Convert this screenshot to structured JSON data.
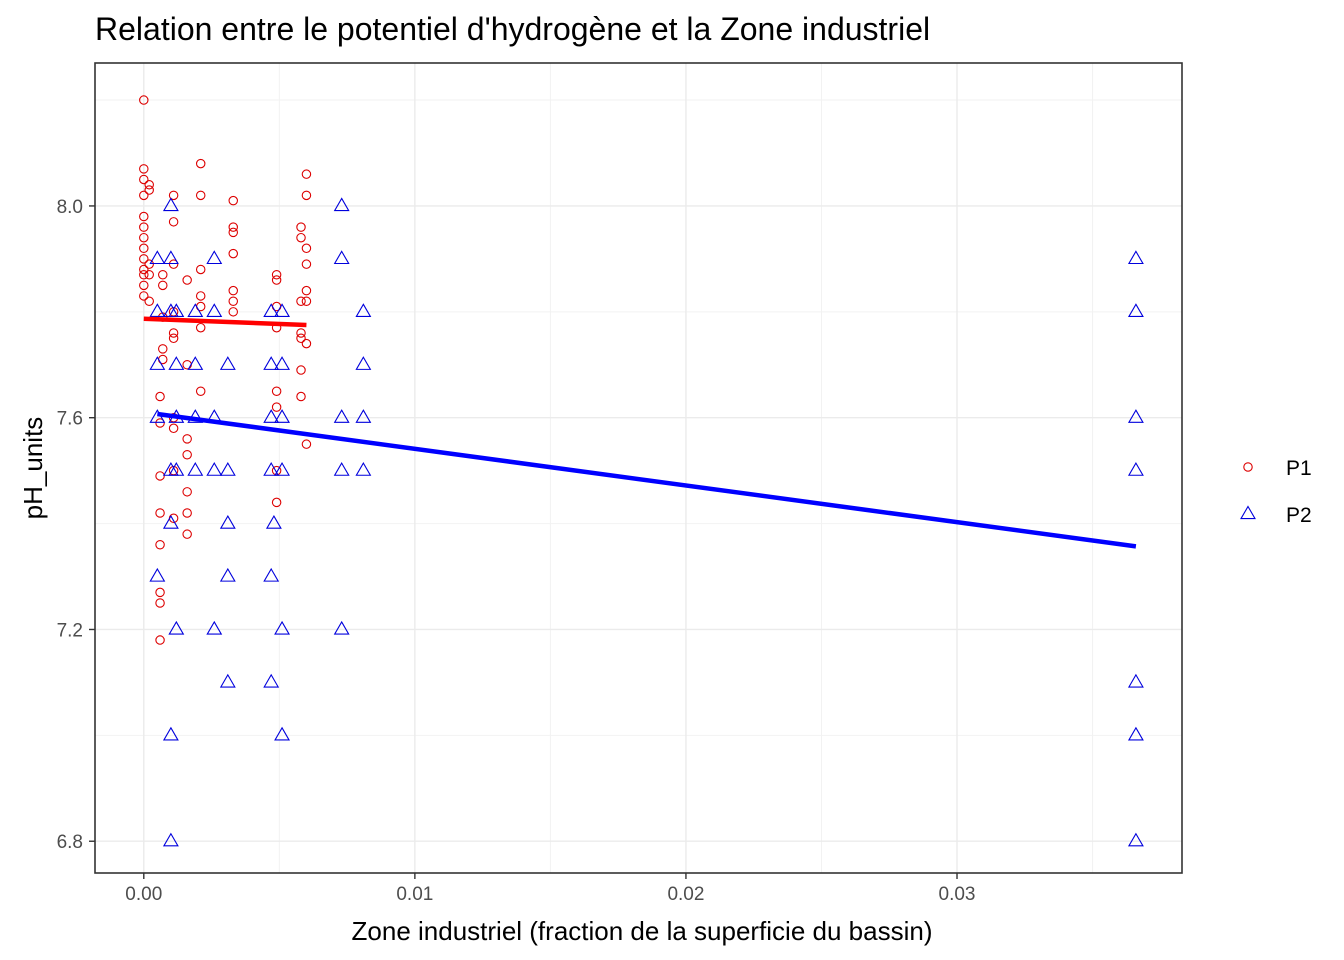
{
  "chart_data": {
    "type": "scatter",
    "title": "Relation entre le potentiel d'hydrogène et la Zone industriel",
    "xlabel": "Zone industriel (fraction de la superficie du bassin)",
    "ylabel": "pH_units",
    "xlim": [
      -0.0018,
      0.0383
    ],
    "ylim": [
      6.74,
      8.27
    ],
    "x_ticks": [
      0.0,
      0.01,
      0.02,
      0.03
    ],
    "x_tick_labels": [
      "0.00",
      "0.01",
      "0.02",
      "0.03"
    ],
    "y_ticks": [
      6.8,
      7.2,
      7.6,
      8.0
    ],
    "y_tick_labels": [
      "6.8",
      "7.2",
      "7.6",
      "8.0"
    ],
    "grid": true,
    "legend_position": "right",
    "series": [
      {
        "name": "P1",
        "marker": "circle",
        "color": "#dd0000",
        "points": [
          [
            0.0,
            8.2
          ],
          [
            0.0,
            8.07
          ],
          [
            0.0,
            8.05
          ],
          [
            0.0,
            8.02
          ],
          [
            0.0,
            7.98
          ],
          [
            0.0,
            7.96
          ],
          [
            0.0,
            7.94
          ],
          [
            0.0,
            7.92
          ],
          [
            0.0,
            7.9
          ],
          [
            0.0,
            7.88
          ],
          [
            0.0,
            7.87
          ],
          [
            0.0,
            7.85
          ],
          [
            0.0,
            7.83
          ],
          [
            0.0002,
            8.04
          ],
          [
            0.0002,
            8.03
          ],
          [
            0.0002,
            7.89
          ],
          [
            0.0002,
            7.87
          ],
          [
            0.0002,
            7.82
          ],
          [
            0.0006,
            7.64
          ],
          [
            0.0006,
            7.59
          ],
          [
            0.0006,
            7.49
          ],
          [
            0.0006,
            7.42
          ],
          [
            0.0006,
            7.36
          ],
          [
            0.0006,
            7.27
          ],
          [
            0.0006,
            7.25
          ],
          [
            0.0006,
            7.18
          ],
          [
            0.0007,
            7.87
          ],
          [
            0.0007,
            7.85
          ],
          [
            0.0007,
            7.79
          ],
          [
            0.0007,
            7.73
          ],
          [
            0.0007,
            7.71
          ],
          [
            0.0011,
            8.02
          ],
          [
            0.0011,
            7.97
          ],
          [
            0.0011,
            7.89
          ],
          [
            0.0011,
            7.8
          ],
          [
            0.0011,
            7.76
          ],
          [
            0.0011,
            7.75
          ],
          [
            0.0011,
            7.6
          ],
          [
            0.0011,
            7.58
          ],
          [
            0.0011,
            7.5
          ],
          [
            0.0011,
            7.41
          ],
          [
            0.0016,
            7.86
          ],
          [
            0.0016,
            7.7
          ],
          [
            0.0016,
            7.56
          ],
          [
            0.0016,
            7.53
          ],
          [
            0.0016,
            7.46
          ],
          [
            0.0016,
            7.42
          ],
          [
            0.0016,
            7.38
          ],
          [
            0.0021,
            8.08
          ],
          [
            0.0021,
            8.02
          ],
          [
            0.0021,
            7.88
          ],
          [
            0.0021,
            7.83
          ],
          [
            0.0021,
            7.81
          ],
          [
            0.0021,
            7.77
          ],
          [
            0.0021,
            7.65
          ],
          [
            0.0033,
            8.01
          ],
          [
            0.0033,
            7.96
          ],
          [
            0.0033,
            7.95
          ],
          [
            0.0033,
            7.91
          ],
          [
            0.0033,
            7.84
          ],
          [
            0.0033,
            7.82
          ],
          [
            0.0033,
            7.8
          ],
          [
            0.0049,
            7.87
          ],
          [
            0.0049,
            7.86
          ],
          [
            0.0049,
            7.81
          ],
          [
            0.0049,
            7.77
          ],
          [
            0.0049,
            7.65
          ],
          [
            0.0049,
            7.62
          ],
          [
            0.0049,
            7.5
          ],
          [
            0.0049,
            7.44
          ],
          [
            0.0058,
            7.96
          ],
          [
            0.0058,
            7.94
          ],
          [
            0.0058,
            7.82
          ],
          [
            0.0058,
            7.76
          ],
          [
            0.0058,
            7.75
          ],
          [
            0.0058,
            7.69
          ],
          [
            0.0058,
            7.64
          ],
          [
            0.006,
            8.06
          ],
          [
            0.006,
            8.02
          ],
          [
            0.006,
            7.92
          ],
          [
            0.006,
            7.89
          ],
          [
            0.006,
            7.84
          ],
          [
            0.006,
            7.82
          ],
          [
            0.006,
            7.74
          ],
          [
            0.006,
            7.55
          ]
        ],
        "trend": [
          [
            0.0,
            7.787
          ],
          [
            0.006,
            7.775
          ]
        ]
      },
      {
        "name": "P2",
        "marker": "triangle",
        "color": "#0000dd",
        "points": [
          [
            0.0005,
            7.9
          ],
          [
            0.0005,
            7.8
          ],
          [
            0.0005,
            7.7
          ],
          [
            0.0005,
            7.6
          ],
          [
            0.0005,
            7.3
          ],
          [
            0.001,
            8.0
          ],
          [
            0.001,
            7.9
          ],
          [
            0.001,
            7.8
          ],
          [
            0.001,
            7.5
          ],
          [
            0.001,
            7.4
          ],
          [
            0.001,
            7.0
          ],
          [
            0.001,
            6.8
          ],
          [
            0.0012,
            7.8
          ],
          [
            0.0012,
            7.7
          ],
          [
            0.0012,
            7.6
          ],
          [
            0.0012,
            7.5
          ],
          [
            0.0012,
            7.2
          ],
          [
            0.0019,
            7.8
          ],
          [
            0.0019,
            7.7
          ],
          [
            0.0019,
            7.6
          ],
          [
            0.0019,
            7.5
          ],
          [
            0.0026,
            7.9
          ],
          [
            0.0026,
            7.8
          ],
          [
            0.0026,
            7.6
          ],
          [
            0.0026,
            7.5
          ],
          [
            0.0026,
            7.2
          ],
          [
            0.0031,
            7.7
          ],
          [
            0.0031,
            7.5
          ],
          [
            0.0031,
            7.4
          ],
          [
            0.0031,
            7.3
          ],
          [
            0.0031,
            7.1
          ],
          [
            0.0047,
            7.8
          ],
          [
            0.0047,
            7.7
          ],
          [
            0.0047,
            7.6
          ],
          [
            0.0047,
            7.5
          ],
          [
            0.0047,
            7.3
          ],
          [
            0.0047,
            7.1
          ],
          [
            0.0048,
            7.4
          ],
          [
            0.0051,
            7.8
          ],
          [
            0.0051,
            7.7
          ],
          [
            0.0051,
            7.6
          ],
          [
            0.0051,
            7.5
          ],
          [
            0.0051,
            7.2
          ],
          [
            0.0051,
            7.0
          ],
          [
            0.0073,
            8.0
          ],
          [
            0.0073,
            7.9
          ],
          [
            0.0073,
            7.6
          ],
          [
            0.0073,
            7.5
          ],
          [
            0.0073,
            7.2
          ],
          [
            0.0081,
            7.8
          ],
          [
            0.0081,
            7.7
          ],
          [
            0.0081,
            7.6
          ],
          [
            0.0081,
            7.5
          ],
          [
            0.0366,
            7.9
          ],
          [
            0.0366,
            7.8
          ],
          [
            0.0366,
            7.6
          ],
          [
            0.0366,
            7.5
          ],
          [
            0.0366,
            7.1
          ],
          [
            0.0366,
            7.0
          ],
          [
            0.0366,
            6.8
          ]
        ],
        "trend": [
          [
            0.0005,
            7.607
          ],
          [
            0.0366,
            7.357
          ]
        ]
      }
    ]
  }
}
